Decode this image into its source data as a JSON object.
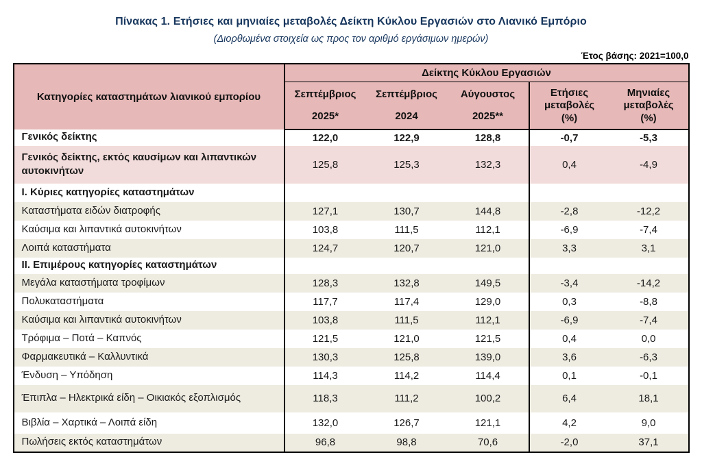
{
  "page": {
    "title": "Πίνακας 1. Ετήσιες και μηνιαίες μεταβολές Δείκτη Κύκλου Εργασιών στο Λιανικό Εμπόριο",
    "subtitle": "(Διορθωμένα στοιχεία ως προς τον αριθμό εργάσιμων ημερών)",
    "base_year_note": "Έτος βάσης: 2021=100,0"
  },
  "colors": {
    "header_pink": "#e6b8b7",
    "highlight_row_pink": "#f2dcdb",
    "alternate_row_beige": "#eeece1",
    "title_text": "#17365d",
    "border": "#000000"
  },
  "table": {
    "row_header": "Κατηγορίες καταστημάτων λιανικού εμπορίου",
    "group_header": "Δείκτης Κύκλου Εργασιών",
    "columns": [
      {
        "line1": "Σεπτέμβριος",
        "line2": "2025*"
      },
      {
        "line1": "Σεπτέμβριος",
        "line2": "2024"
      },
      {
        "line1": "Αύγουστος",
        "line2": "2025**"
      },
      {
        "line1": "Ετήσιες",
        "line2": "μεταβολές",
        "line3": "(%)"
      },
      {
        "line1": "Μηνιαίες",
        "line2": "μεταβολές",
        "line3": "(%)"
      }
    ],
    "rows": [
      {
        "label": "Γενικός δείκτης",
        "values": [
          "122,0",
          "122,9",
          "128,8",
          "-0,7",
          "-5,3"
        ],
        "bold": true,
        "bg": "white",
        "size": "sm"
      },
      {
        "label": "Γενικός δείκτης, εκτός καυσίμων και λιπαντικών αυτοκινήτων",
        "values": [
          "125,8",
          "125,3",
          "132,3",
          "0,4",
          "-4,9"
        ],
        "label_bold": true,
        "bg": "pink",
        "size": "tall"
      },
      {
        "label": "Ι. Κύριες κατηγορίες καταστημάτων",
        "values": [
          "",
          "",
          "",
          "",
          ""
        ],
        "label_bold": true,
        "bg": "white"
      },
      {
        "label": "Καταστήματα ειδών διατροφής",
        "values": [
          "127,1",
          "130,7",
          "144,8",
          "-2,8",
          "-12,2"
        ],
        "bg": "beige"
      },
      {
        "label": "Καύσιμα και λιπαντικά αυτοκινήτων",
        "values": [
          "103,8",
          "111,5",
          "112,1",
          "-6,9",
          "-7,4"
        ],
        "bg": "white"
      },
      {
        "label": "Λοιπά καταστήματα",
        "values": [
          "124,7",
          "120,7",
          "121,0",
          "3,3",
          "3,1"
        ],
        "bg": "beige"
      },
      {
        "label": "ΙΙ. Επιμέρους κατηγορίες καταστημάτων",
        "values": [
          "",
          "",
          "",
          "",
          ""
        ],
        "label_bold": true,
        "bg": "white",
        "size": "sm"
      },
      {
        "label": "Μεγάλα καταστήματα τροφίμων",
        "values": [
          "128,3",
          "132,8",
          "149,5",
          "-3,4",
          "-14,2"
        ],
        "bg": "beige"
      },
      {
        "label": "Πολυκαταστήματα",
        "values": [
          "117,7",
          "117,4",
          "129,0",
          "0,3",
          "-8,8"
        ],
        "bg": "white"
      },
      {
        "label": "Καύσιμα και λιπαντικά αυτοκινήτων",
        "values": [
          "103,8",
          "111,5",
          "112,1",
          "-6,9",
          "-7,4"
        ],
        "bg": "beige"
      },
      {
        "label": "Τρόφιμα – Ποτά – Καπνός",
        "values": [
          "121,5",
          "121,0",
          "121,5",
          "0,4",
          "0,0"
        ],
        "bg": "white"
      },
      {
        "label": "Φαρμακευτικά – Καλλυντικά",
        "values": [
          "130,3",
          "125,8",
          "139,0",
          "3,6",
          "-6,3"
        ],
        "bg": "beige"
      },
      {
        "label": "Ένδυση – Υπόδηση",
        "values": [
          "114,3",
          "114,2",
          "114,4",
          "0,1",
          "-0,1"
        ],
        "bg": "white"
      },
      {
        "label": "Έπιπλα – Ηλεκτρικά είδη – Οικιακός εξοπλισμός",
        "values": [
          "118,3",
          "111,2",
          "100,2",
          "6,4",
          "18,1"
        ],
        "bg": "beige",
        "size": "xl"
      },
      {
        "label": "Βιβλία – Χαρτικά – Λοιπά είδη",
        "values": [
          "132,0",
          "126,7",
          "121,1",
          "4,2",
          "9,0"
        ],
        "bg": "white",
        "size": "lg"
      },
      {
        "label": "Πωλήσεις εκτός καταστημάτων",
        "values": [
          "96,8",
          "98,8",
          "70,6",
          "-2,0",
          "37,1"
        ],
        "bg": "beige"
      }
    ]
  }
}
